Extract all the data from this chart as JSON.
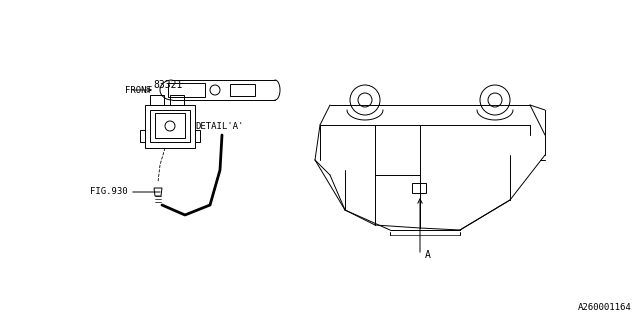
{
  "bg_color": "#ffffff",
  "line_color": "#000000",
  "gray_color": "#888888",
  "fig_width": 6.4,
  "fig_height": 3.2,
  "dpi": 100,
  "part_number_label": "83321",
  "fig_ref_label": "FIG.930",
  "detail_label": "DETAIL'A'",
  "front_label": "FRONT",
  "watermark": "A260001164",
  "arrow_A_label": "A"
}
